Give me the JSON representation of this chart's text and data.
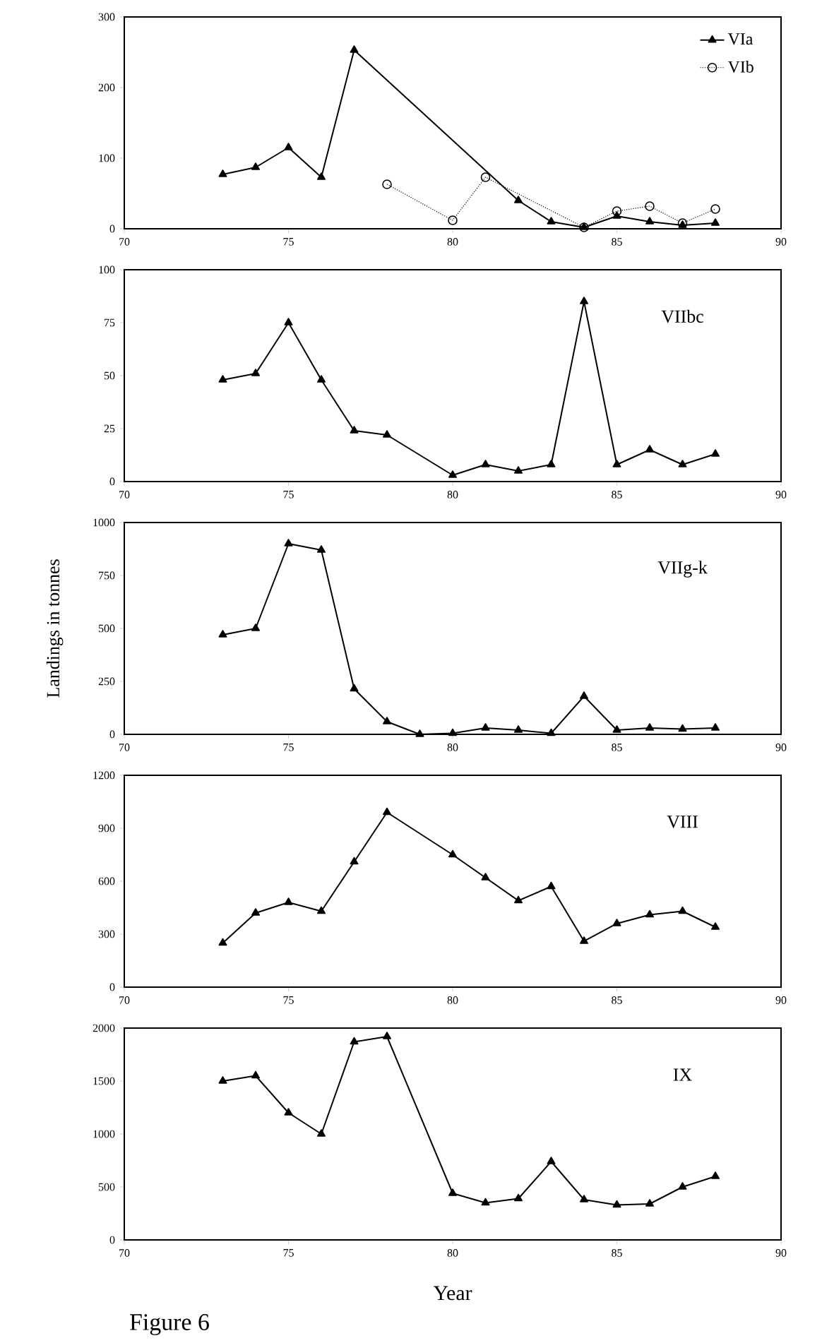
{
  "chart_data": [
    {
      "type": "line",
      "xlim": [
        70,
        90
      ],
      "xticks": [
        70,
        75,
        80,
        85,
        90
      ],
      "ylim": [
        0,
        300
      ],
      "yticks": [
        0,
        100,
        200,
        300
      ],
      "legend": "top right",
      "grid": false,
      "series": [
        {
          "name": "VIa",
          "color": "#000000",
          "marker": "triangle",
          "line_style": "solid",
          "x": [
            73,
            74,
            75,
            76,
            77,
            82,
            83,
            84,
            85,
            86,
            87,
            88
          ],
          "values": [
            77,
            87,
            115,
            73,
            253,
            40,
            10,
            2,
            18,
            10,
            5,
            8
          ]
        },
        {
          "name": "VIb",
          "color": "#000000",
          "marker": "circle",
          "line_style": "dotted",
          "x": [
            78,
            80,
            81,
            84,
            85,
            86,
            87,
            88
          ],
          "values": [
            63,
            12,
            73,
            2,
            25,
            32,
            8,
            28
          ]
        }
      ]
    },
    {
      "type": "line",
      "title": "VIIbc",
      "xlim": [
        70,
        90
      ],
      "xticks": [
        70,
        75,
        80,
        85,
        90
      ],
      "ylim": [
        0,
        100
      ],
      "yticks": [
        0,
        25,
        50,
        75,
        100
      ],
      "grid": false,
      "series": [
        {
          "color": "#000000",
          "marker": "triangle",
          "line_style": "solid",
          "x": [
            73,
            74,
            75,
            76,
            77,
            78,
            80,
            81,
            82,
            83,
            84,
            85,
            86,
            87,
            88
          ],
          "values": [
            48,
            51,
            75,
            48,
            24,
            22,
            3,
            8,
            5,
            8,
            85,
            8,
            15,
            8,
            13
          ]
        }
      ]
    },
    {
      "type": "line",
      "title": "VIIg-k",
      "ylabel": "Landings in tonnes",
      "xlim": [
        70,
        90
      ],
      "xticks": [
        70,
        75,
        80,
        85,
        90
      ],
      "ylim": [
        0,
        1000
      ],
      "yticks": [
        0,
        250,
        500,
        750,
        1000
      ],
      "grid": false,
      "series": [
        {
          "color": "#000000",
          "marker": "triangle",
          "line_style": "solid",
          "x": [
            73,
            74,
            75,
            76,
            77,
            78,
            79,
            80,
            81,
            82,
            83,
            84,
            85,
            86,
            87,
            88
          ],
          "values": [
            470,
            500,
            900,
            870,
            215,
            60,
            0,
            5,
            30,
            20,
            5,
            180,
            20,
            30,
            25,
            30
          ]
        }
      ]
    },
    {
      "type": "line",
      "title": "VIII",
      "xlim": [
        70,
        90
      ],
      "xticks": [
        70,
        75,
        80,
        85,
        90
      ],
      "ylim": [
        0,
        1200
      ],
      "yticks": [
        0,
        300,
        600,
        900,
        1200
      ],
      "grid": false,
      "series": [
        {
          "color": "#000000",
          "marker": "triangle",
          "line_style": "solid",
          "x": [
            73,
            74,
            75,
            76,
            77,
            78,
            80,
            81,
            82,
            83,
            84,
            85,
            86,
            87,
            88
          ],
          "values": [
            250,
            420,
            480,
            430,
            710,
            990,
            750,
            620,
            490,
            570,
            260,
            360,
            410,
            430,
            340
          ]
        }
      ]
    },
    {
      "type": "line",
      "title": "IX",
      "xlabel": "Year",
      "annotations": [
        "Figure 6"
      ],
      "xlim": [
        70,
        90
      ],
      "xticks": [
        70,
        75,
        80,
        85,
        90
      ],
      "ylim": [
        0,
        2000
      ],
      "yticks": [
        0,
        500,
        1000,
        1500,
        2000
      ],
      "grid": false,
      "series": [
        {
          "color": "#000000",
          "marker": "triangle",
          "line_style": "solid",
          "x": [
            73,
            74,
            75,
            76,
            77,
            78,
            80,
            81,
            82,
            83,
            84,
            85,
            86,
            87,
            88
          ],
          "values": [
            1500,
            1550,
            1200,
            1000,
            1870,
            1920,
            440,
            350,
            390,
            740,
            380,
            330,
            340,
            500,
            600
          ]
        }
      ]
    }
  ]
}
